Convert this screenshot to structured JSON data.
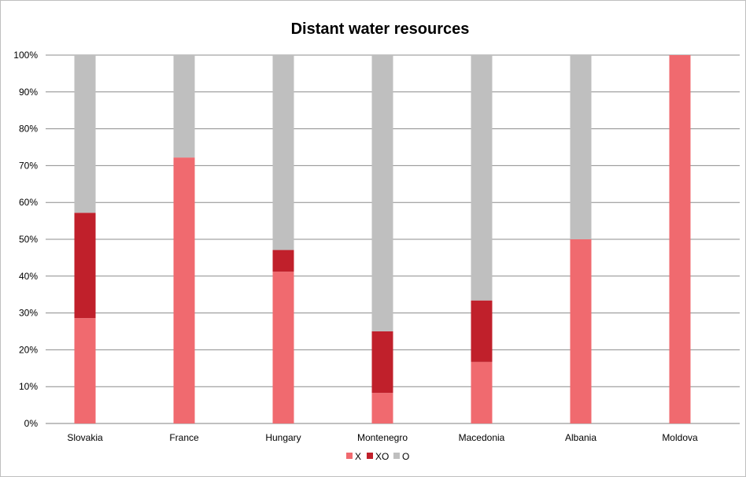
{
  "chart_data": {
    "type": "bar",
    "stacked": true,
    "title": "Distant water resources",
    "categories": [
      "Slovakia",
      "France",
      "Hungary",
      "Montenegro",
      "Macedonia",
      "Albania",
      "Moldova"
    ],
    "series": [
      {
        "name": "X",
        "color": "#f06a6f",
        "values": [
          28.6,
          72.2,
          41.2,
          8.3,
          16.7,
          50.0,
          100.0
        ]
      },
      {
        "name": "XO",
        "color": "#c0202b",
        "values": [
          28.6,
          0.0,
          5.9,
          16.7,
          16.7,
          0.0,
          0.0
        ]
      },
      {
        "name": "O",
        "color": "#bfbfbf",
        "values": [
          42.8,
          27.8,
          52.9,
          75.0,
          66.6,
          50.0,
          0.0
        ]
      }
    ],
    "ylim": [
      0,
      100
    ],
    "yticks": [
      "0%",
      "10%",
      "20%",
      "30%",
      "40%",
      "50%",
      "60%",
      "70%",
      "80%",
      "90%",
      "100%"
    ],
    "grid": true,
    "legend_position": "bottom"
  }
}
